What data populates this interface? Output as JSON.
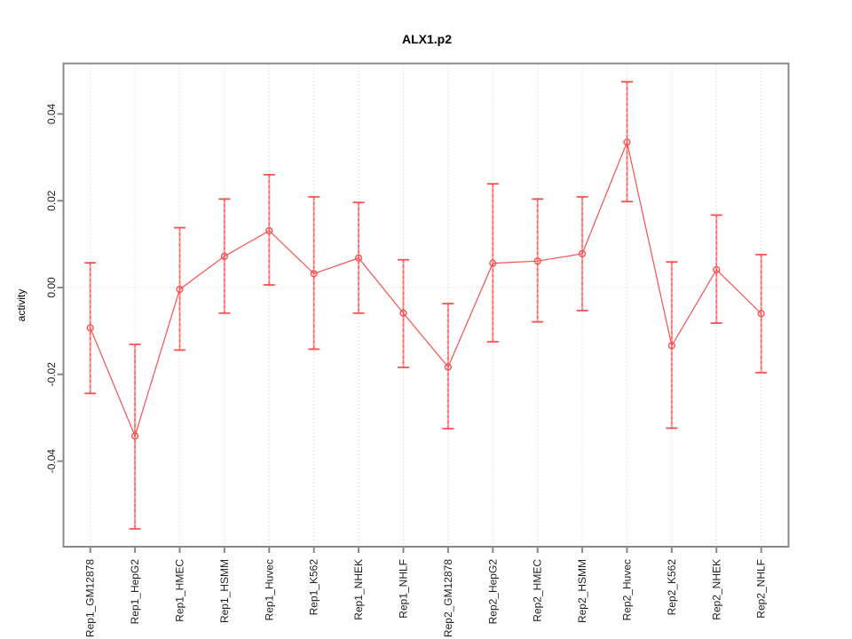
{
  "chart_data": {
    "type": "line",
    "title": "ALX1.p2",
    "ylabel": "activity",
    "xlabel": "",
    "categories": [
      "Rep1_GM12878",
      "Rep1_HepG2",
      "Rep1_HMEC",
      "Rep1_HSMM",
      "Rep1_Huvec",
      "Rep1_K562",
      "Rep1_NHEK",
      "Rep1_NHLF",
      "Rep2_GM12878",
      "Rep2_HepG2",
      "Rep2_HMEC",
      "Rep2_HSMM",
      "Rep2_Huvec",
      "Rep2_K562",
      "Rep2_NHEK",
      "Rep2_NHLF"
    ],
    "series": [
      {
        "name": "activity",
        "values": [
          -0.0093,
          -0.0342,
          -0.0004,
          0.0072,
          0.0131,
          0.0032,
          0.0068,
          -0.0059,
          -0.0183,
          0.0056,
          0.0061,
          0.0078,
          0.0335,
          -0.0134,
          0.0041,
          -0.006
        ],
        "ci_low": [
          -0.0244,
          -0.0556,
          -0.0144,
          -0.0059,
          0.0006,
          -0.0142,
          -0.0059,
          -0.0184,
          -0.0325,
          -0.0125,
          -0.0079,
          -0.0053,
          0.0198,
          -0.0324,
          -0.0082,
          -0.0196
        ],
        "ci_high": [
          0.0057,
          -0.0131,
          0.0138,
          0.0204,
          0.026,
          0.0209,
          0.0196,
          0.0064,
          -0.0037,
          0.0239,
          0.0204,
          0.0209,
          0.0474,
          0.0059,
          0.0167,
          0.0076
        ]
      }
    ],
    "yticks": {
      "values": [
        0.04,
        0.02,
        0.0,
        -0.02,
        -0.04
      ],
      "labels": [
        "0.04",
        "0.02",
        "0.00",
        "-0.02",
        "-0.04"
      ]
    },
    "ylim": [
      -0.0597,
      0.0519
    ],
    "grid": {
      "vertical": "dotted line at every category",
      "horizontal": "dotted line at y=0 only"
    },
    "legend": "none",
    "marker": "open-circle",
    "colors": {
      "accent_red": "#f65252",
      "errorbar_stem": "#ff9d9d",
      "grid_gray": "#dcdcdc",
      "border_gray": "#898989",
      "text_dark": "#1e1e1e",
      "background": "#ffffff"
    }
  }
}
